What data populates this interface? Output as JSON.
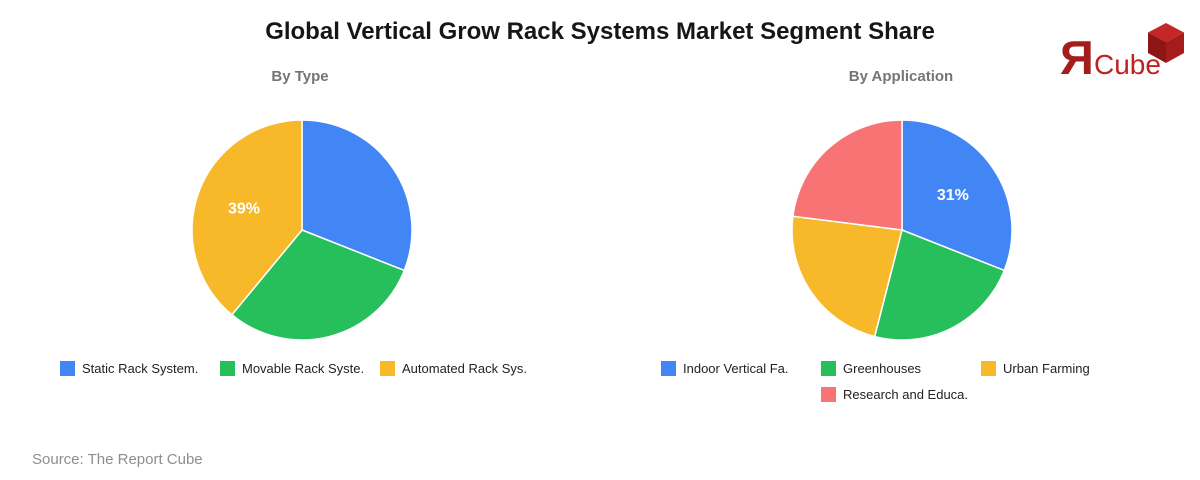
{
  "title": "Global Vertical Grow Rack Systems Market Segment Share",
  "source": "Source: The Report Cube",
  "logo": {
    "mark": "Я",
    "text": "Cube"
  },
  "chart_data": [
    {
      "type": "pie",
      "title": "By Type",
      "categories": [
        "Static Rack System.",
        "Movable Rack Syste.",
        "Automated Rack Sys."
      ],
      "values": [
        31,
        30,
        39
      ],
      "colors": [
        "#4285F4",
        "#27BE5C",
        "#F7B829"
      ],
      "labeled_slice": 2,
      "slice_label": "39%",
      "legend_position": "bottom",
      "legend_layout": [
        {
          "row": 0,
          "col": 0
        },
        {
          "row": 0,
          "col": 1
        },
        {
          "row": 0,
          "col": 2
        }
      ]
    },
    {
      "type": "pie",
      "title": "By Application",
      "categories": [
        "Indoor Vertical Fa.",
        "Greenhouses",
        "Urban Farming",
        "Research and Educa."
      ],
      "values": [
        31,
        23,
        23,
        23
      ],
      "colors": [
        "#4285F4",
        "#27BE5C",
        "#F7B829",
        "#F87373"
      ],
      "labeled_slice": 0,
      "slice_label": "31%",
      "legend_position": "bottom",
      "legend_layout": [
        {
          "row": 0,
          "col": 0
        },
        {
          "row": 0,
          "col": 1
        },
        {
          "row": 0,
          "col": 2
        },
        {
          "row": 1,
          "col": 1
        }
      ]
    }
  ]
}
